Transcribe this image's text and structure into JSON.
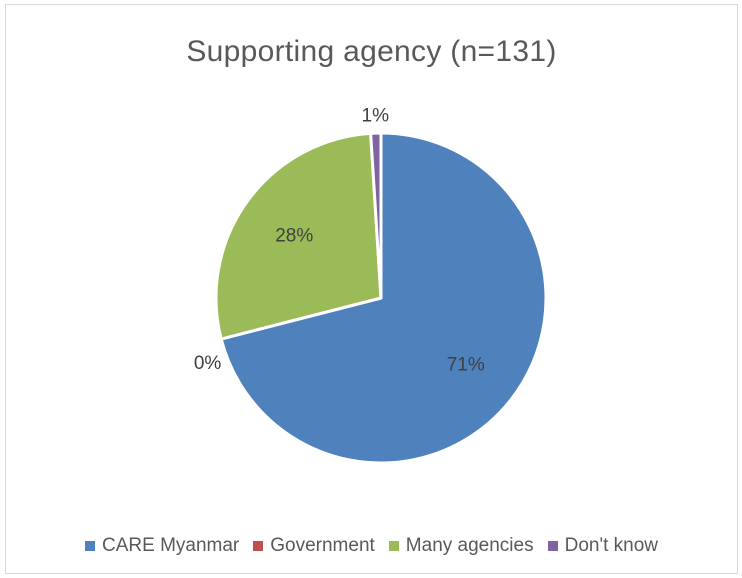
{
  "chart_data": {
    "type": "pie",
    "title": "Supporting agency (n=131)",
    "categories": [
      "CARE Myanmar",
      "Government",
      "Many agencies",
      "Don't know"
    ],
    "values": [
      71,
      0,
      28,
      1
    ],
    "labels": [
      "71%",
      "0%",
      "28%",
      "1%"
    ],
    "colors": [
      "#4f81bd",
      "#c0504d",
      "#9bbb59",
      "#8064a2"
    ],
    "legend_position": "bottom"
  }
}
